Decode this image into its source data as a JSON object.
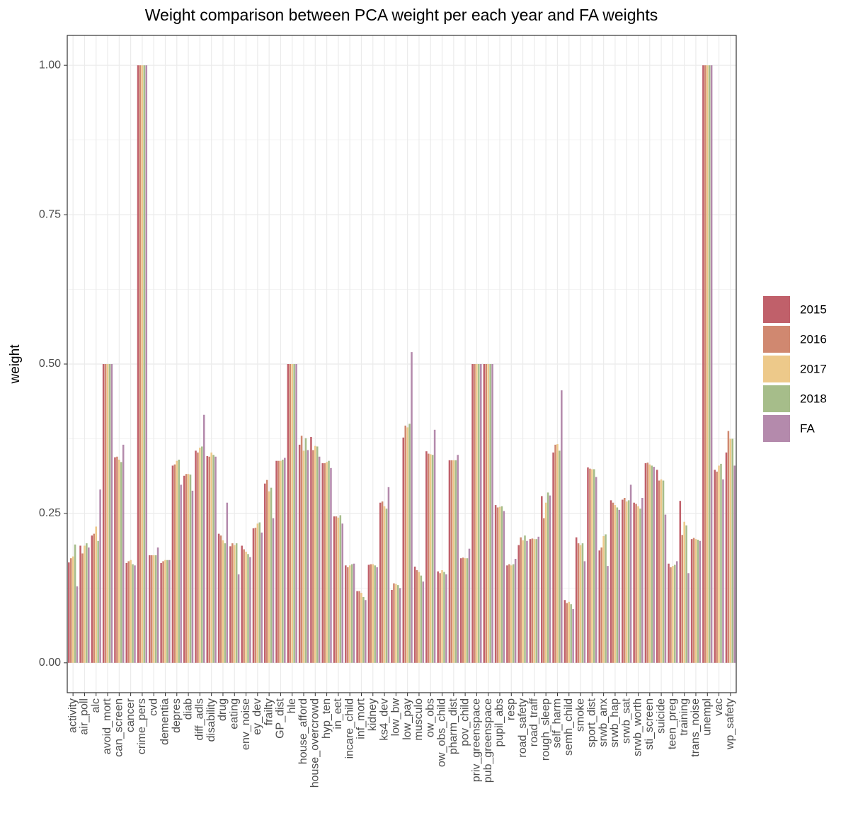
{
  "chart_data": {
    "type": "bar",
    "title": "Weight comparison between PCA weight  per each year and FA weights",
    "y_label": "weight",
    "categories": [
      "activity",
      "air_poll",
      "alc",
      "avoid_mort",
      "can_screen",
      "cancer",
      "crime_pers",
      "cvd",
      "dementia",
      "depres",
      "diab",
      "diff_adls",
      "disability",
      "drug",
      "eating",
      "env_noise",
      "ey_dev",
      "frailty",
      "GP_dist",
      "hle",
      "house_afford",
      "house_overcrowd",
      "hyp_ten",
      "in_eet",
      "incare_child",
      "inf_mort",
      "kidney",
      "ks4_dev",
      "low_bw",
      "low_pay",
      "musculo",
      "ow_obs",
      "ow_obs_child",
      "pharm_dist",
      "pov_child",
      "priv_greenspace",
      "pub_greenspace",
      "pupil_abs",
      "resp",
      "road_safety",
      "road_traff",
      "rough_sleep",
      "self_harm",
      "semh_child",
      "smoke",
      "sport_dist",
      "srwb_anx",
      "srwb_hap",
      "srwb_sat",
      "srwb_worth",
      "sti_screen",
      "suicide",
      "teen_preg",
      "training",
      "trans_noise",
      "unempl",
      "vac",
      "wp_safety"
    ],
    "series": [
      {
        "name": "2015",
        "color": "#c0606a",
        "values": [
          0.168,
          0.196,
          0.213,
          0.5,
          0.344,
          0.167,
          1.0,
          0.18,
          0.167,
          0.33,
          0.313,
          0.355,
          0.346,
          0.216,
          0.195,
          0.196,
          0.225,
          0.3,
          0.338,
          0.5,
          0.365,
          0.378,
          0.334,
          0.245,
          0.163,
          0.12,
          0.164,
          0.268,
          0.122,
          0.377,
          0.161,
          0.354,
          0.153,
          0.339,
          0.175,
          0.5,
          0.5,
          0.264,
          0.163,
          0.197,
          0.207,
          0.279,
          0.352,
          0.105,
          0.21,
          0.327,
          0.188,
          0.272,
          0.273,
          0.268,
          0.334,
          0.323,
          0.166,
          0.271,
          0.207,
          1.0,
          0.323,
          0.352
        ]
      },
      {
        "name": "2016",
        "color": "#d08870",
        "values": [
          0.175,
          0.183,
          0.216,
          0.5,
          0.345,
          0.17,
          1.0,
          0.18,
          0.17,
          0.332,
          0.316,
          0.352,
          0.345,
          0.213,
          0.2,
          0.19,
          0.226,
          0.306,
          0.338,
          0.5,
          0.38,
          0.356,
          0.334,
          0.245,
          0.16,
          0.12,
          0.165,
          0.27,
          0.133,
          0.397,
          0.155,
          0.35,
          0.15,
          0.339,
          0.176,
          0.5,
          0.5,
          0.26,
          0.165,
          0.21,
          0.208,
          0.242,
          0.365,
          0.1,
          0.2,
          0.325,
          0.193,
          0.268,
          0.276,
          0.266,
          0.335,
          0.305,
          0.16,
          0.214,
          0.209,
          1.0,
          0.32,
          0.388
        ]
      },
      {
        "name": "2017",
        "color": "#edc98a",
        "values": [
          0.178,
          0.196,
          0.228,
          0.5,
          0.34,
          0.172,
          1.0,
          0.18,
          0.172,
          0.338,
          0.316,
          0.36,
          0.352,
          0.205,
          0.197,
          0.186,
          0.233,
          0.287,
          0.338,
          0.5,
          0.355,
          0.363,
          0.336,
          0.243,
          0.163,
          0.117,
          0.165,
          0.262,
          0.132,
          0.394,
          0.152,
          0.349,
          0.155,
          0.339,
          0.175,
          0.5,
          0.5,
          0.261,
          0.163,
          0.205,
          0.207,
          0.268,
          0.366,
          0.102,
          0.197,
          0.324,
          0.212,
          0.264,
          0.27,
          0.262,
          0.332,
          0.307,
          0.162,
          0.236,
          0.207,
          1.0,
          0.33,
          0.375
        ]
      },
      {
        "name": "2018",
        "color": "#a6bd8a",
        "values": [
          0.198,
          0.2,
          0.204,
          0.5,
          0.336,
          0.165,
          1.0,
          0.18,
          0.172,
          0.34,
          0.315,
          0.362,
          0.348,
          0.2,
          0.2,
          0.182,
          0.235,
          0.293,
          0.34,
          0.5,
          0.376,
          0.362,
          0.338,
          0.247,
          0.165,
          0.11,
          0.163,
          0.258,
          0.13,
          0.4,
          0.146,
          0.348,
          0.152,
          0.339,
          0.175,
          0.5,
          0.5,
          0.262,
          0.165,
          0.213,
          0.207,
          0.285,
          0.355,
          0.098,
          0.2,
          0.324,
          0.215,
          0.26,
          0.272,
          0.258,
          0.33,
          0.305,
          0.164,
          0.23,
          0.206,
          1.0,
          0.333,
          0.375
        ]
      },
      {
        "name": "FA",
        "color": "#b48aac",
        "values": [
          0.128,
          0.193,
          0.29,
          0.5,
          0.365,
          0.163,
          1.0,
          0.193,
          0.172,
          0.298,
          0.288,
          0.415,
          0.345,
          0.268,
          0.148,
          0.177,
          0.218,
          0.242,
          0.343,
          0.5,
          0.356,
          0.345,
          0.326,
          0.233,
          0.166,
          0.105,
          0.16,
          0.294,
          0.125,
          0.52,
          0.136,
          0.39,
          0.148,
          0.348,
          0.191,
          0.5,
          0.5,
          0.254,
          0.174,
          0.204,
          0.211,
          0.28,
          0.456,
          0.09,
          0.17,
          0.311,
          0.162,
          0.256,
          0.298,
          0.276,
          0.328,
          0.248,
          0.17,
          0.15,
          0.204,
          1.0,
          0.307,
          0.33
        ]
      }
    ],
    "ylim": [
      -0.05,
      1.05
    ],
    "yticks": [
      {
        "value": 0,
        "label": "0.00"
      },
      {
        "value": 0.25,
        "label": "0.25"
      },
      {
        "value": 0.5,
        "label": "0.50"
      },
      {
        "value": 0.75,
        "label": "0.75"
      },
      {
        "value": 1,
        "label": "1.00"
      }
    ],
    "grid": true
  }
}
